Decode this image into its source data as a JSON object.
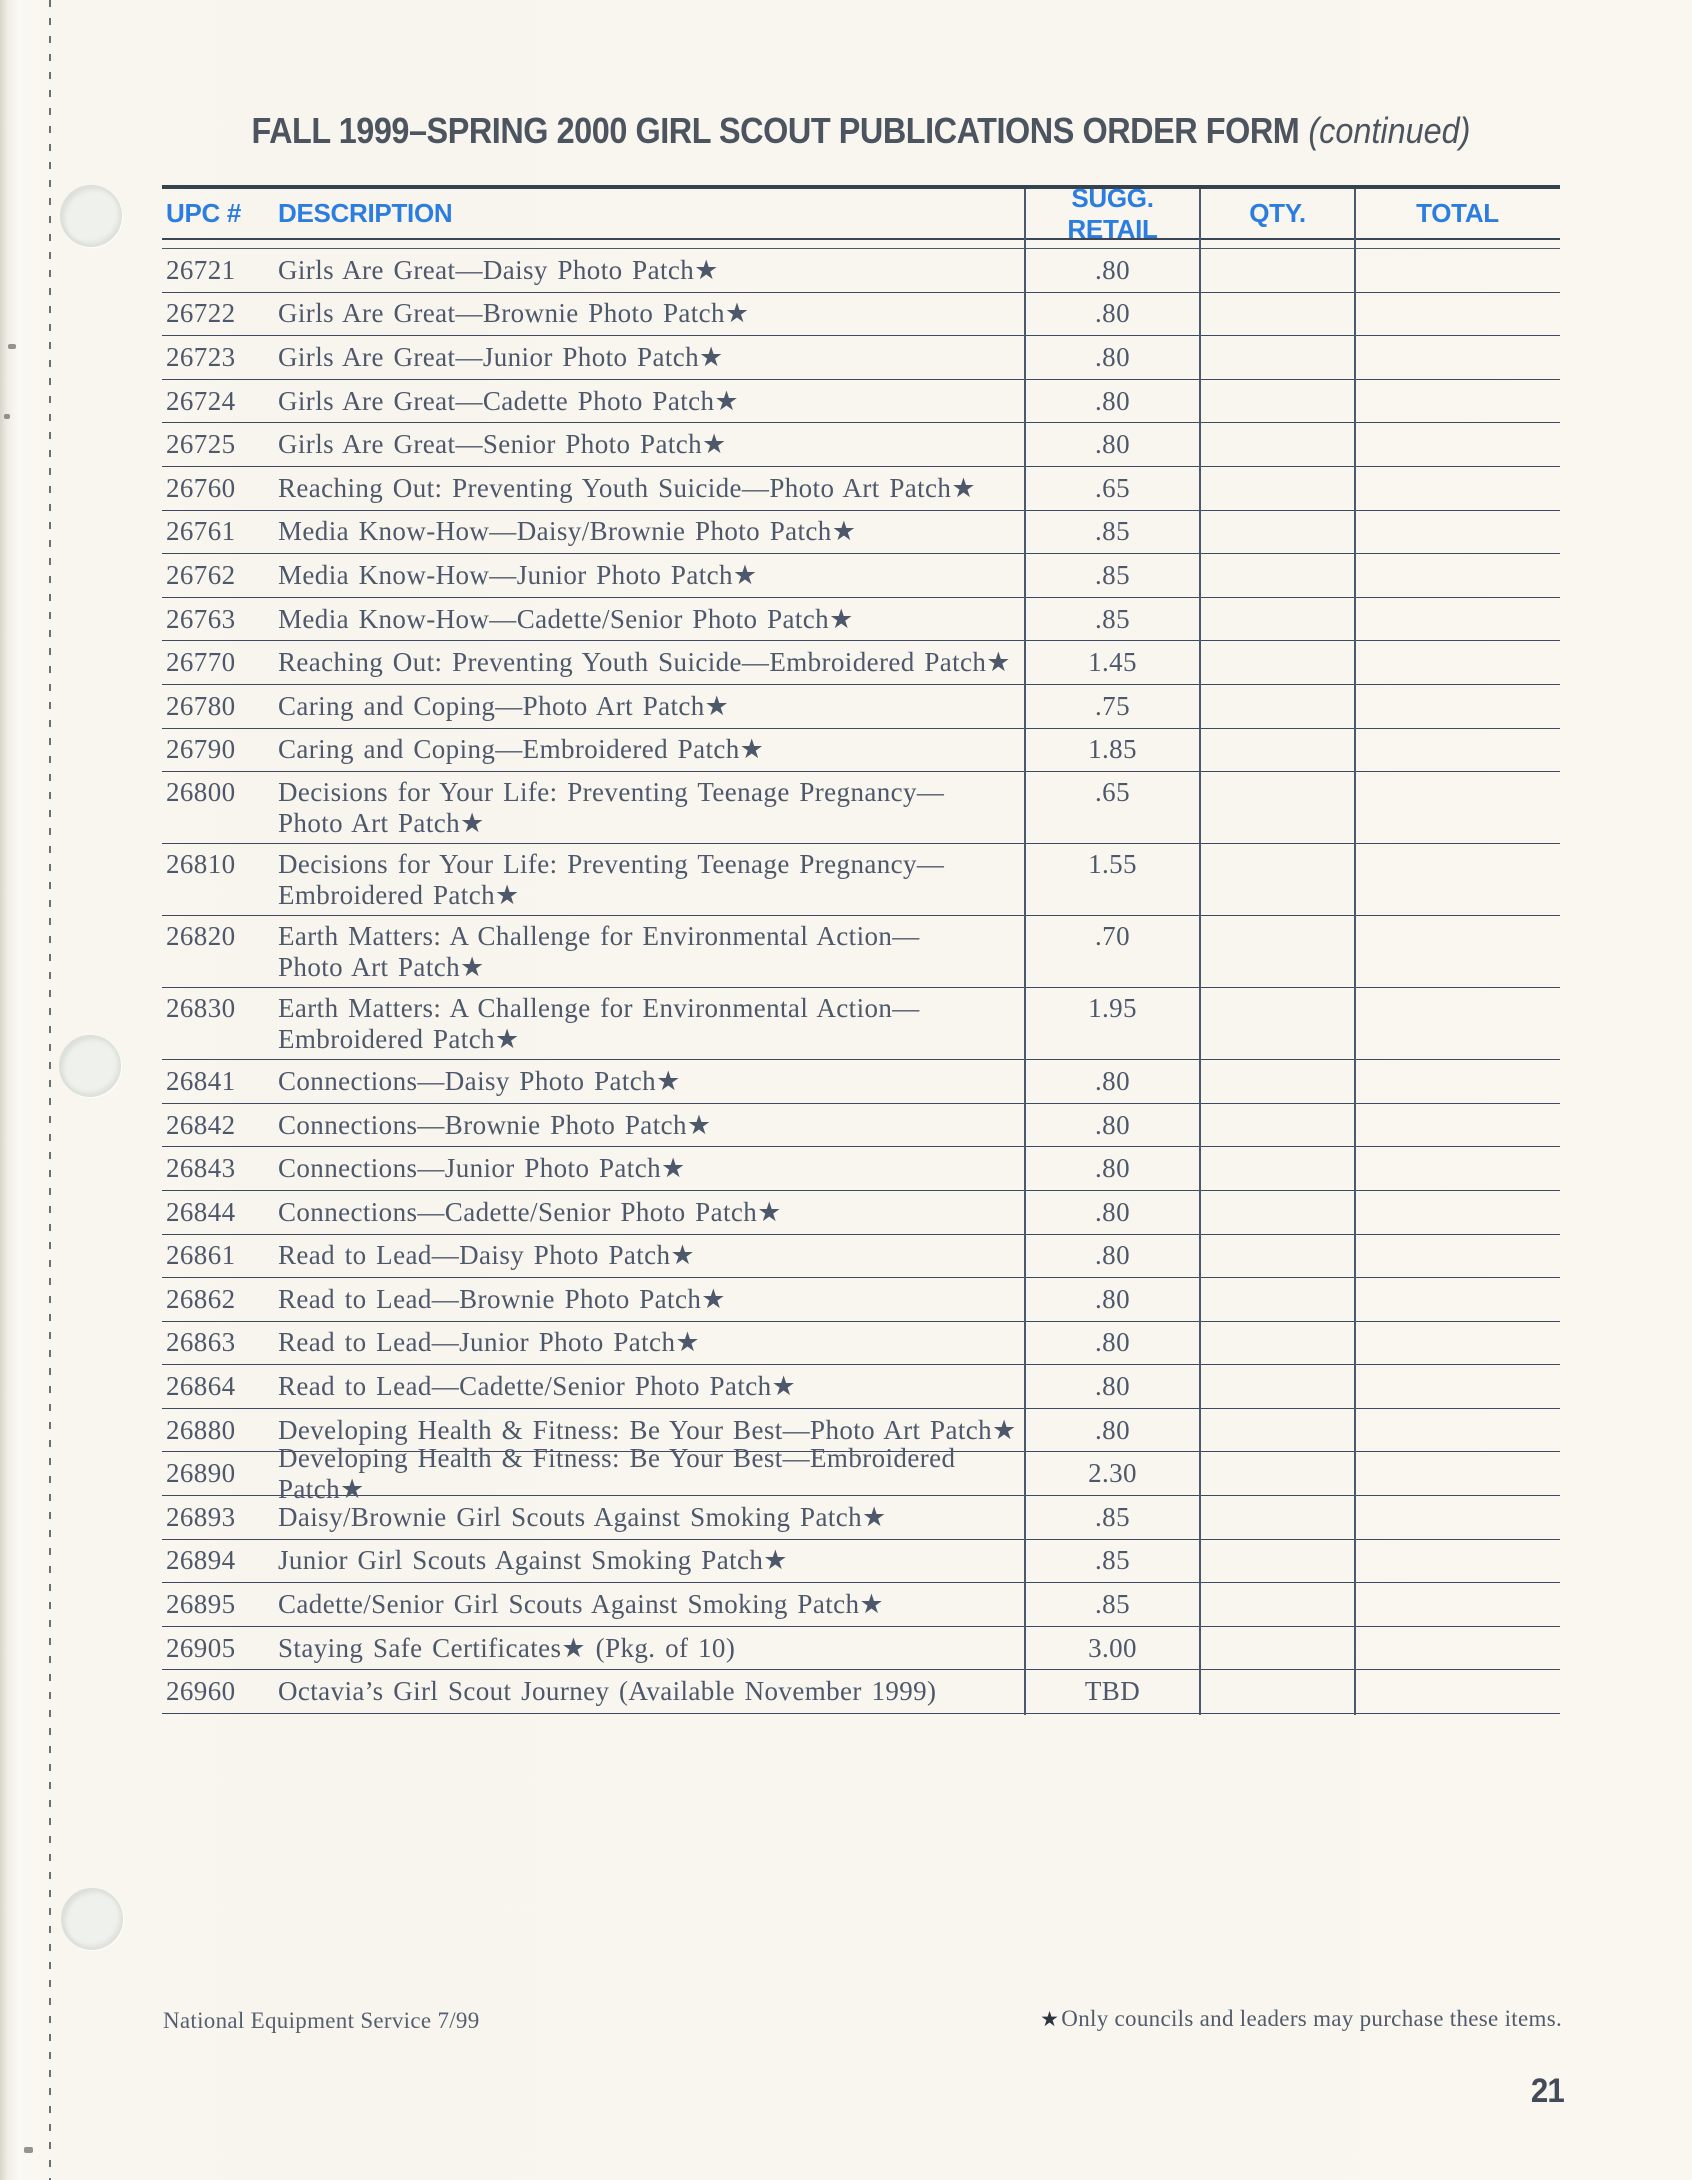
{
  "page": {
    "title": "FALL 1999–SPRING 2000 GIRL SCOUT PUBLICATIONS ORDER FORM",
    "title_suffix": " (continued)",
    "footer_left": "National Equipment Service 7/99",
    "footnote_star": "★",
    "footnote_text": "Only councils and leaders may purchase these items.",
    "page_number": "21"
  },
  "colors": {
    "header_blue": "#2b7de0",
    "title_gray": "#4b545f",
    "body_text": "#4e586b",
    "rule_dark": "#35434f",
    "row_line": "#3f4a61",
    "page_background": "#f8f5ee"
  },
  "table": {
    "columns": [
      "UPC #",
      "DESCRIPTION",
      "SUGG. RETAIL",
      "QTY.",
      "TOTAL"
    ],
    "rows": [
      {
        "upc": "26721",
        "lines": [
          "Girls Are Great—Daisy Photo Patch★"
        ],
        "retail": ".80",
        "qty": "",
        "total": ""
      },
      {
        "upc": "26722",
        "lines": [
          "Girls Are Great—Brownie Photo Patch★"
        ],
        "retail": ".80",
        "qty": "",
        "total": ""
      },
      {
        "upc": "26723",
        "lines": [
          "Girls Are Great—Junior Photo Patch★"
        ],
        "retail": ".80",
        "qty": "",
        "total": ""
      },
      {
        "upc": "26724",
        "lines": [
          "Girls Are Great—Cadette Photo Patch★"
        ],
        "retail": ".80",
        "qty": "",
        "total": ""
      },
      {
        "upc": "26725",
        "lines": [
          "Girls Are Great—Senior Photo Patch★"
        ],
        "retail": ".80",
        "qty": "",
        "total": ""
      },
      {
        "upc": "26760",
        "lines": [
          "Reaching Out: Preventing Youth Suicide—Photo Art Patch★"
        ],
        "retail": ".65",
        "qty": "",
        "total": ""
      },
      {
        "upc": "26761",
        "lines": [
          "Media Know-How—Daisy/Brownie Photo Patch★"
        ],
        "retail": ".85",
        "qty": "",
        "total": ""
      },
      {
        "upc": "26762",
        "lines": [
          "Media Know-How—Junior Photo Patch★"
        ],
        "retail": ".85",
        "qty": "",
        "total": ""
      },
      {
        "upc": "26763",
        "lines": [
          "Media Know-How—Cadette/Senior Photo Patch★"
        ],
        "retail": ".85",
        "qty": "",
        "total": ""
      },
      {
        "upc": "26770",
        "lines": [
          "Reaching Out: Preventing Youth Suicide—Embroidered Patch★"
        ],
        "retail": "1.45",
        "qty": "",
        "total": ""
      },
      {
        "upc": "26780",
        "lines": [
          "Caring and Coping—Photo Art Patch★"
        ],
        "retail": ".75",
        "qty": "",
        "total": ""
      },
      {
        "upc": "26790",
        "lines": [
          "Caring and Coping—Embroidered Patch★"
        ],
        "retail": "1.85",
        "qty": "",
        "total": ""
      },
      {
        "upc": "26800",
        "lines": [
          "Decisions for Your Life: Preventing Teenage Pregnancy—",
          "Photo Art Patch★"
        ],
        "retail": ".65",
        "qty": "",
        "total": ""
      },
      {
        "upc": "26810",
        "lines": [
          "Decisions for Your Life: Preventing Teenage Pregnancy—",
          "Embroidered Patch★"
        ],
        "retail": "1.55",
        "qty": "",
        "total": ""
      },
      {
        "upc": "26820",
        "lines": [
          "Earth Matters: A Challenge for Environmental Action—",
          "Photo Art Patch★"
        ],
        "retail": ".70",
        "qty": "",
        "total": ""
      },
      {
        "upc": "26830",
        "lines": [
          "Earth Matters: A Challenge for Environmental Action—",
          "Embroidered Patch★"
        ],
        "retail": "1.95",
        "qty": "",
        "total": ""
      },
      {
        "upc": "26841",
        "lines": [
          "Connections—Daisy Photo Patch★"
        ],
        "retail": ".80",
        "qty": "",
        "total": ""
      },
      {
        "upc": "26842",
        "lines": [
          "Connections—Brownie Photo Patch★"
        ],
        "retail": ".80",
        "qty": "",
        "total": ""
      },
      {
        "upc": "26843",
        "lines": [
          "Connections—Junior Photo Patch★"
        ],
        "retail": ".80",
        "qty": "",
        "total": ""
      },
      {
        "upc": "26844",
        "lines": [
          "Connections—Cadette/Senior Photo Patch★"
        ],
        "retail": ".80",
        "qty": "",
        "total": ""
      },
      {
        "upc": "26861",
        "lines": [
          "Read to Lead—Daisy Photo Patch★"
        ],
        "retail": ".80",
        "qty": "",
        "total": ""
      },
      {
        "upc": "26862",
        "lines": [
          "Read to Lead—Brownie Photo Patch★"
        ],
        "retail": ".80",
        "qty": "",
        "total": ""
      },
      {
        "upc": "26863",
        "lines": [
          "Read to Lead—Junior Photo Patch★"
        ],
        "retail": ".80",
        "qty": "",
        "total": ""
      },
      {
        "upc": "26864",
        "lines": [
          "Read to Lead—Cadette/Senior Photo Patch★"
        ],
        "retail": ".80",
        "qty": "",
        "total": ""
      },
      {
        "upc": "26880",
        "lines": [
          "Developing Health & Fitness: Be Your Best—Photo Art Patch★"
        ],
        "retail": ".80",
        "qty": "",
        "total": ""
      },
      {
        "upc": "26890",
        "lines": [
          "Developing Health & Fitness: Be Your Best—Embroidered Patch★"
        ],
        "retail": "2.30",
        "qty": "",
        "total": ""
      },
      {
        "upc": "26893",
        "lines": [
          "Daisy/Brownie Girl Scouts Against Smoking Patch★"
        ],
        "retail": ".85",
        "qty": "",
        "total": ""
      },
      {
        "upc": "26894",
        "lines": [
          "Junior Girl Scouts Against Smoking Patch★"
        ],
        "retail": ".85",
        "qty": "",
        "total": ""
      },
      {
        "upc": "26895",
        "lines": [
          "Cadette/Senior Girl Scouts Against Smoking Patch★"
        ],
        "retail": ".85",
        "qty": "",
        "total": ""
      },
      {
        "upc": "26905",
        "lines": [
          "Staying Safe Certificates★ (Pkg. of 10)"
        ],
        "retail": "3.00",
        "qty": "",
        "total": ""
      },
      {
        "upc": "26960",
        "lines": [
          "Octavia’s Girl Scout Journey (Available November 1999)"
        ],
        "retail": "TBD",
        "qty": "",
        "total": ""
      }
    ]
  }
}
